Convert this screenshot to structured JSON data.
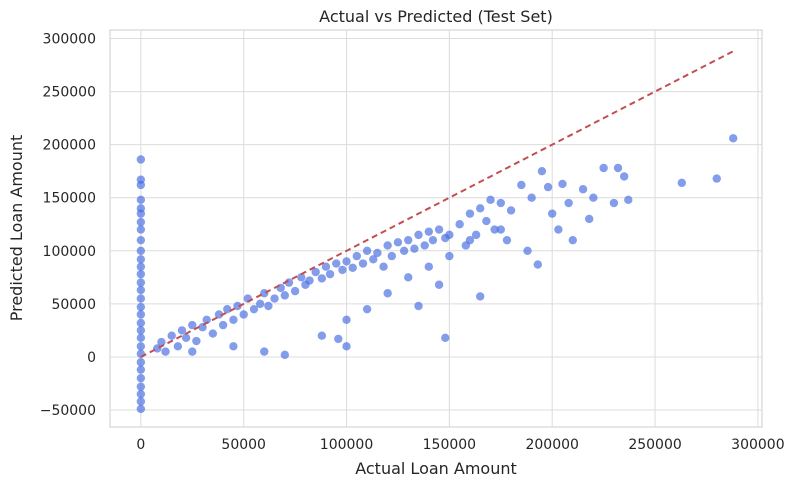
{
  "chart_data": {
    "type": "scatter",
    "title": "Actual vs Predicted (Test Set)",
    "xlabel": "Actual Loan Amount",
    "ylabel": "Predicted Loan Amount",
    "xlim": [
      -15000,
      302000
    ],
    "ylim": [
      -66000,
      308000
    ],
    "xticks": [
      0,
      50000,
      100000,
      150000,
      200000,
      250000,
      300000
    ],
    "xtick_labels": [
      "0",
      "50000",
      "100000",
      "150000",
      "200000",
      "250000",
      "300000"
    ],
    "yticks": [
      -50000,
      0,
      50000,
      100000,
      150000,
      200000,
      250000,
      300000
    ],
    "ytick_labels": [
      "−50000",
      "0",
      "50000",
      "100000",
      "150000",
      "200000",
      "250000",
      "300000"
    ],
    "grid": true,
    "point_color": "#4169e1",
    "point_opacity": 0.65,
    "reference_line": {
      "from": [
        0,
        0
      ],
      "to": [
        288000,
        288000
      ],
      "color": "#c44e52",
      "style": "dashed"
    },
    "points": [
      [
        0,
        186000
      ],
      [
        0,
        167000
      ],
      [
        0,
        162000
      ],
      [
        0,
        148000
      ],
      [
        0,
        140000
      ],
      [
        0,
        135000
      ],
      [
        0,
        127000
      ],
      [
        0,
        120000
      ],
      [
        0,
        110000
      ],
      [
        0,
        100000
      ],
      [
        0,
        92000
      ],
      [
        0,
        85000
      ],
      [
        0,
        78000
      ],
      [
        0,
        70000
      ],
      [
        0,
        63000
      ],
      [
        0,
        55000
      ],
      [
        0,
        47000
      ],
      [
        0,
        40000
      ],
      [
        0,
        32000
      ],
      [
        0,
        25000
      ],
      [
        0,
        18000
      ],
      [
        0,
        10000
      ],
      [
        0,
        3000
      ],
      [
        0,
        -5000
      ],
      [
        0,
        -12000
      ],
      [
        0,
        -20000
      ],
      [
        0,
        -28000
      ],
      [
        0,
        -35000
      ],
      [
        0,
        -42000
      ],
      [
        0,
        -49000
      ],
      [
        8000,
        8000
      ],
      [
        10000,
        14000
      ],
      [
        12000,
        5000
      ],
      [
        15000,
        20000
      ],
      [
        18000,
        10000
      ],
      [
        20000,
        25000
      ],
      [
        22000,
        18000
      ],
      [
        25000,
        30000
      ],
      [
        27000,
        15000
      ],
      [
        30000,
        28000
      ],
      [
        32000,
        35000
      ],
      [
        35000,
        22000
      ],
      [
        38000,
        40000
      ],
      [
        40000,
        30000
      ],
      [
        42000,
        45000
      ],
      [
        45000,
        35000
      ],
      [
        47000,
        48000
      ],
      [
        50000,
        40000
      ],
      [
        52000,
        55000
      ],
      [
        55000,
        45000
      ],
      [
        58000,
        50000
      ],
      [
        60000,
        60000
      ],
      [
        62000,
        48000
      ],
      [
        65000,
        55000
      ],
      [
        68000,
        65000
      ],
      [
        70000,
        58000
      ],
      [
        72000,
        70000
      ],
      [
        75000,
        62000
      ],
      [
        78000,
        75000
      ],
      [
        80000,
        68000
      ],
      [
        82000,
        72000
      ],
      [
        85000,
        80000
      ],
      [
        88000,
        74000
      ],
      [
        90000,
        85000
      ],
      [
        92000,
        78000
      ],
      [
        95000,
        88000
      ],
      [
        98000,
        82000
      ],
      [
        100000,
        90000
      ],
      [
        103000,
        84000
      ],
      [
        105000,
        95000
      ],
      [
        108000,
        88000
      ],
      [
        110000,
        100000
      ],
      [
        113000,
        92000
      ],
      [
        115000,
        98000
      ],
      [
        118000,
        85000
      ],
      [
        120000,
        105000
      ],
      [
        122000,
        95000
      ],
      [
        125000,
        108000
      ],
      [
        128000,
        100000
      ],
      [
        130000,
        110000
      ],
      [
        133000,
        102000
      ],
      [
        135000,
        115000
      ],
      [
        138000,
        105000
      ],
      [
        140000,
        118000
      ],
      [
        142000,
        110000
      ],
      [
        145000,
        120000
      ],
      [
        148000,
        112000
      ],
      [
        150000,
        115000
      ],
      [
        155000,
        125000
      ],
      [
        158000,
        105000
      ],
      [
        160000,
        135000
      ],
      [
        163000,
        115000
      ],
      [
        165000,
        140000
      ],
      [
        168000,
        128000
      ],
      [
        170000,
        148000
      ],
      [
        172000,
        120000
      ],
      [
        175000,
        145000
      ],
      [
        178000,
        110000
      ],
      [
        180000,
        138000
      ],
      [
        185000,
        162000
      ],
      [
        188000,
        100000
      ],
      [
        190000,
        150000
      ],
      [
        193000,
        87000
      ],
      [
        195000,
        175000
      ],
      [
        198000,
        160000
      ],
      [
        200000,
        135000
      ],
      [
        203000,
        120000
      ],
      [
        205000,
        163000
      ],
      [
        208000,
        145000
      ],
      [
        210000,
        110000
      ],
      [
        215000,
        158000
      ],
      [
        218000,
        130000
      ],
      [
        220000,
        150000
      ],
      [
        225000,
        178000
      ],
      [
        230000,
        145000
      ],
      [
        232000,
        178000
      ],
      [
        235000,
        170000
      ],
      [
        237000,
        148000
      ],
      [
        263000,
        164000
      ],
      [
        280000,
        168000
      ],
      [
        288000,
        206000
      ],
      [
        148000,
        18000
      ],
      [
        165000,
        57000
      ],
      [
        135000,
        48000
      ],
      [
        100000,
        10000
      ],
      [
        96000,
        17000
      ],
      [
        88000,
        20000
      ],
      [
        70000,
        2000
      ],
      [
        60000,
        5000
      ],
      [
        25000,
        5000
      ],
      [
        45000,
        10000
      ],
      [
        100000,
        35000
      ],
      [
        110000,
        45000
      ],
      [
        120000,
        60000
      ],
      [
        145000,
        68000
      ],
      [
        140000,
        85000
      ],
      [
        130000,
        75000
      ],
      [
        150000,
        95000
      ],
      [
        160000,
        110000
      ],
      [
        175000,
        120000
      ]
    ]
  }
}
